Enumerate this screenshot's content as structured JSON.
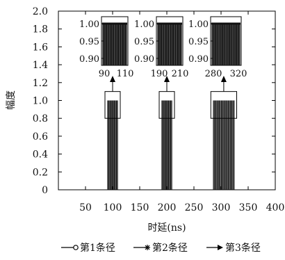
{
  "chart_data": {
    "type": "line",
    "xlabel": "时延(ns)",
    "ylabel": "幅度",
    "xlim": [
      0,
      400
    ],
    "ylim": [
      0,
      2.0
    ],
    "x_ticks": [
      "50",
      "100",
      "150",
      "200",
      "250",
      "300",
      "350",
      "400"
    ],
    "y_ticks": [
      "0",
      "0.2",
      "0.4",
      "0.6",
      "0.8",
      "1.0",
      "1.2",
      "1.4",
      "1.6",
      "1.8",
      "2.0"
    ],
    "grid": false,
    "legend_position": "bottom",
    "series": [
      {
        "name": "第1条径",
        "marker": "circle",
        "pulse_start": 90,
        "pulse_end": 110,
        "peak": 1.0,
        "color": "#111111"
      },
      {
        "name": "第2条径",
        "marker": "star",
        "pulse_start": 190,
        "pulse_end": 210,
        "peak": 1.0,
        "color": "#111111"
      },
      {
        "name": "第3条径",
        "marker": "triangle",
        "pulse_start": 285,
        "pulse_end": 325,
        "peak": 1.0,
        "color": "#111111"
      }
    ],
    "insets": [
      {
        "x_ticks": [
          "90",
          "110"
        ],
        "y_ticks": [
          "1.00",
          "0.95",
          "0.90"
        ]
      },
      {
        "x_ticks": [
          "190",
          "210"
        ],
        "y_ticks": [
          "1.00",
          "0.95",
          "0.90"
        ]
      },
      {
        "x_ticks": [
          "280",
          "320"
        ],
        "y_ticks": [
          "1.00",
          "0.95",
          "0.90"
        ]
      }
    ]
  }
}
